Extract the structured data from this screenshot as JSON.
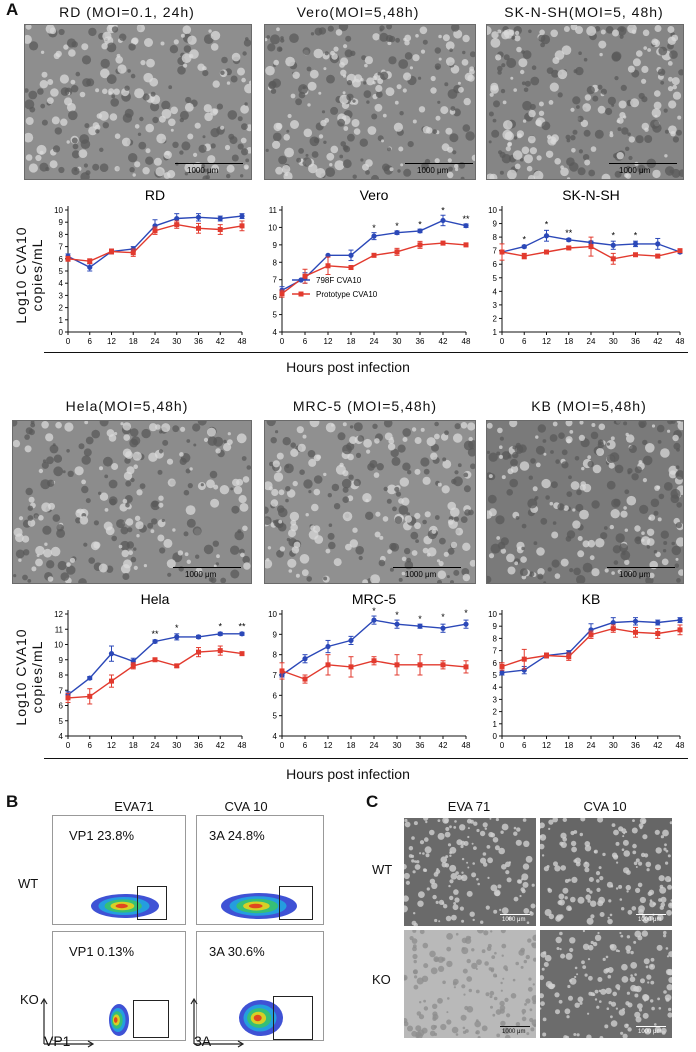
{
  "panels": {
    "A": "A",
    "B": "B",
    "C": "C"
  },
  "micrographs_top": [
    {
      "caption": "RD  (MOI=0.1, 24h)",
      "scale": "1000 μm"
    },
    {
      "caption": "Vero(MOI=5,48h)",
      "scale": "1000 μm"
    },
    {
      "caption": "SK-N-SH(MOI=5, 48h)",
      "scale": "1000 μm"
    }
  ],
  "micrographs_bottom": [
    {
      "caption": "Hela(MOI=5,48h)",
      "scale": "1000 μm"
    },
    {
      "caption": "MRC-5  (MOI=5,48h)",
      "scale": "1000 μm"
    },
    {
      "caption": "KB  (MOI=5,48h)",
      "scale": "1000 μm"
    }
  ],
  "y_axis_label": "Log10 CVA10\ncopies/mL",
  "y_axis_label_line1": "Log10 CVA10",
  "y_axis_label_line2": "copies/mL",
  "x_axis_label": "Hours post infection",
  "legend": {
    "series1": "798F CVA10",
    "series2": "Prototype CVA10"
  },
  "colors": {
    "series1": "#2b48b8",
    "series2": "#e23a2e"
  },
  "chart_data": [
    {
      "type": "line",
      "title": "RD",
      "x": [
        0,
        6,
        12,
        18,
        24,
        30,
        36,
        42,
        48
      ],
      "ylim": [
        0,
        10
      ],
      "yticks": [
        0,
        1,
        2,
        3,
        4,
        5,
        6,
        7,
        8,
        9,
        10
      ],
      "series": [
        {
          "name": "798F CVA10",
          "values": [
            6.2,
            5.3,
            6.6,
            6.8,
            8.7,
            9.3,
            9.4,
            9.3,
            9.5
          ],
          "err": [
            0.2,
            0.3,
            0.2,
            0.2,
            0.5,
            0.4,
            0.3,
            0.2,
            0.2
          ]
        },
        {
          "name": "Prototype CVA10",
          "values": [
            6.0,
            5.8,
            6.6,
            6.5,
            8.3,
            8.8,
            8.5,
            8.4,
            8.7
          ],
          "err": [
            0.2,
            0.2,
            0.2,
            0.3,
            0.3,
            0.3,
            0.4,
            0.4,
            0.4
          ]
        }
      ],
      "stars": []
    },
    {
      "type": "line",
      "title": "Vero",
      "x": [
        0,
        6,
        12,
        18,
        24,
        30,
        36,
        42,
        48
      ],
      "ylim": [
        4,
        11
      ],
      "yticks": [
        4,
        5,
        6,
        7,
        8,
        9,
        10,
        11
      ],
      "series": [
        {
          "name": "798F CVA10",
          "values": [
            6.4,
            7.1,
            8.4,
            8.4,
            9.5,
            9.7,
            9.8,
            10.4,
            10.1
          ],
          "err": [
            0.2,
            0.3,
            0.0,
            0.3,
            0.2,
            0.1,
            0.1,
            0.3,
            0.1
          ]
        },
        {
          "name": "Prototype CVA10",
          "values": [
            6.2,
            7.2,
            7.8,
            7.7,
            8.4,
            8.6,
            9.0,
            9.1,
            9.0
          ],
          "err": [
            0.2,
            0.4,
            0.5,
            0.1,
            0.1,
            0.2,
            0.2,
            0.1,
            0.1
          ]
        }
      ],
      "stars": [
        {
          "x": 24,
          "label": "*",
          "y": 9.8
        },
        {
          "x": 30,
          "label": "*",
          "y": 9.9
        },
        {
          "x": 36,
          "label": "*",
          "y": 10.0
        },
        {
          "x": 42,
          "label": "*",
          "y": 10.8
        },
        {
          "x": 48,
          "label": "**",
          "y": 10.3
        }
      ]
    },
    {
      "type": "line",
      "title": "SK-N-SH",
      "x": [
        0,
        6,
        12,
        18,
        24,
        30,
        36,
        42,
        48
      ],
      "ylim": [
        1,
        10
      ],
      "yticks": [
        1,
        2,
        3,
        4,
        5,
        6,
        7,
        8,
        9,
        10
      ],
      "series": [
        {
          "name": "798F CVA10",
          "values": [
            6.9,
            7.3,
            8.1,
            7.8,
            7.6,
            7.4,
            7.5,
            7.5,
            6.9
          ],
          "err": [
            0.1,
            0.1,
            0.4,
            0.1,
            0.1,
            0.3,
            0.2,
            0.4,
            0.1
          ]
        },
        {
          "name": "Prototype CVA10",
          "values": [
            6.9,
            6.6,
            6.9,
            7.2,
            7.3,
            6.4,
            6.7,
            6.6,
            7.0
          ],
          "err": [
            0.6,
            0.2,
            0.1,
            0.1,
            0.7,
            0.4,
            0.1,
            0.1,
            0.1
          ]
        }
      ],
      "stars": [
        {
          "x": 6,
          "label": "*",
          "y": 7.6
        },
        {
          "x": 12,
          "label": "*",
          "y": 8.7
        },
        {
          "x": 18,
          "label": "**",
          "y": 8.1
        },
        {
          "x": 30,
          "label": "*",
          "y": 7.9
        },
        {
          "x": 36,
          "label": "*",
          "y": 7.9
        }
      ]
    },
    {
      "type": "line",
      "title": "Hela",
      "x": [
        0,
        6,
        12,
        18,
        24,
        30,
        36,
        42,
        48
      ],
      "ylim": [
        4,
        12
      ],
      "yticks": [
        4,
        5,
        6,
        7,
        8,
        9,
        10,
        11,
        12
      ],
      "series": [
        {
          "name": "798F CVA10",
          "values": [
            6.7,
            7.8,
            9.4,
            8.9,
            10.2,
            10.5,
            10.5,
            10.7,
            10.7
          ],
          "err": [
            0.2,
            0.1,
            0.5,
            0.2,
            0.1,
            0.2,
            0.1,
            0.1,
            0.1
          ]
        },
        {
          "name": "Prototype CVA10",
          "values": [
            6.5,
            6.6,
            7.6,
            8.6,
            9.0,
            8.6,
            9.5,
            9.6,
            9.4
          ],
          "err": [
            0.3,
            0.5,
            0.4,
            0.2,
            0.1,
            0.1,
            0.3,
            0.3,
            0.1
          ]
        }
      ],
      "stars": [
        {
          "x": 24,
          "label": "**",
          "y": 10.5
        },
        {
          "x": 30,
          "label": "*",
          "y": 10.9
        },
        {
          "x": 42,
          "label": "*",
          "y": 11.0
        },
        {
          "x": 48,
          "label": "**",
          "y": 11.0
        }
      ]
    },
    {
      "type": "line",
      "title": "MRC-5",
      "x": [
        0,
        6,
        12,
        18,
        24,
        30,
        36,
        42,
        48
      ],
      "ylim": [
        4,
        10
      ],
      "yticks": [
        4,
        5,
        6,
        7,
        8,
        9,
        10
      ],
      "series": [
        {
          "name": "798F CVA10",
          "values": [
            7.0,
            7.8,
            8.4,
            8.7,
            9.7,
            9.5,
            9.4,
            9.3,
            9.5
          ],
          "err": [
            0.1,
            0.2,
            0.3,
            0.2,
            0.2,
            0.2,
            0.1,
            0.2,
            0.2
          ]
        },
        {
          "name": "Prototype CVA10",
          "values": [
            7.2,
            6.8,
            7.5,
            7.4,
            7.7,
            7.5,
            7.5,
            7.5,
            7.4
          ],
          "err": [
            0.4,
            0.2,
            0.5,
            0.5,
            0.2,
            0.5,
            0.5,
            0.2,
            0.3
          ]
        }
      ],
      "stars": [
        {
          "x": 24,
          "label": "*",
          "y": 10.0
        },
        {
          "x": 30,
          "label": "*",
          "y": 9.8
        },
        {
          "x": 36,
          "label": "*",
          "y": 9.6
        },
        {
          "x": 42,
          "label": "*",
          "y": 9.7
        },
        {
          "x": 48,
          "label": "*",
          "y": 9.9
        }
      ]
    },
    {
      "type": "line",
      "title": "KB",
      "x": [
        0,
        6,
        12,
        18,
        24,
        30,
        36,
        42,
        48
      ],
      "ylim": [
        0,
        10
      ],
      "yticks": [
        0,
        1,
        2,
        3,
        4,
        5,
        6,
        7,
        8,
        9,
        10
      ],
      "series": [
        {
          "name": "798F CVA10",
          "values": [
            5.2,
            5.4,
            6.6,
            6.8,
            8.7,
            9.3,
            9.4,
            9.3,
            9.5
          ],
          "err": [
            0.2,
            0.3,
            0.2,
            0.2,
            0.5,
            0.4,
            0.3,
            0.2,
            0.2
          ]
        },
        {
          "name": "Prototype CVA10",
          "values": [
            5.7,
            6.3,
            6.6,
            6.5,
            8.3,
            8.8,
            8.5,
            8.4,
            8.7
          ],
          "err": [
            0.3,
            0.8,
            0.2,
            0.3,
            0.3,
            0.3,
            0.4,
            0.4,
            0.4
          ]
        }
      ],
      "stars": []
    }
  ],
  "flow": {
    "col1": "EVA71",
    "col2": "CVA 10",
    "row1": "WT",
    "row2": "KO",
    "cells": [
      [
        "VP1 23.8%",
        "3A 24.8%"
      ],
      [
        "VP1 0.13%",
        "3A 30.6%"
      ]
    ],
    "xaxis1": "VP1",
    "xaxis2": "3A"
  },
  "panelC": {
    "col1": "EVA 71",
    "col2": "CVA 10",
    "row1": "WT",
    "row2": "KO",
    "scale": "1000 μm"
  }
}
